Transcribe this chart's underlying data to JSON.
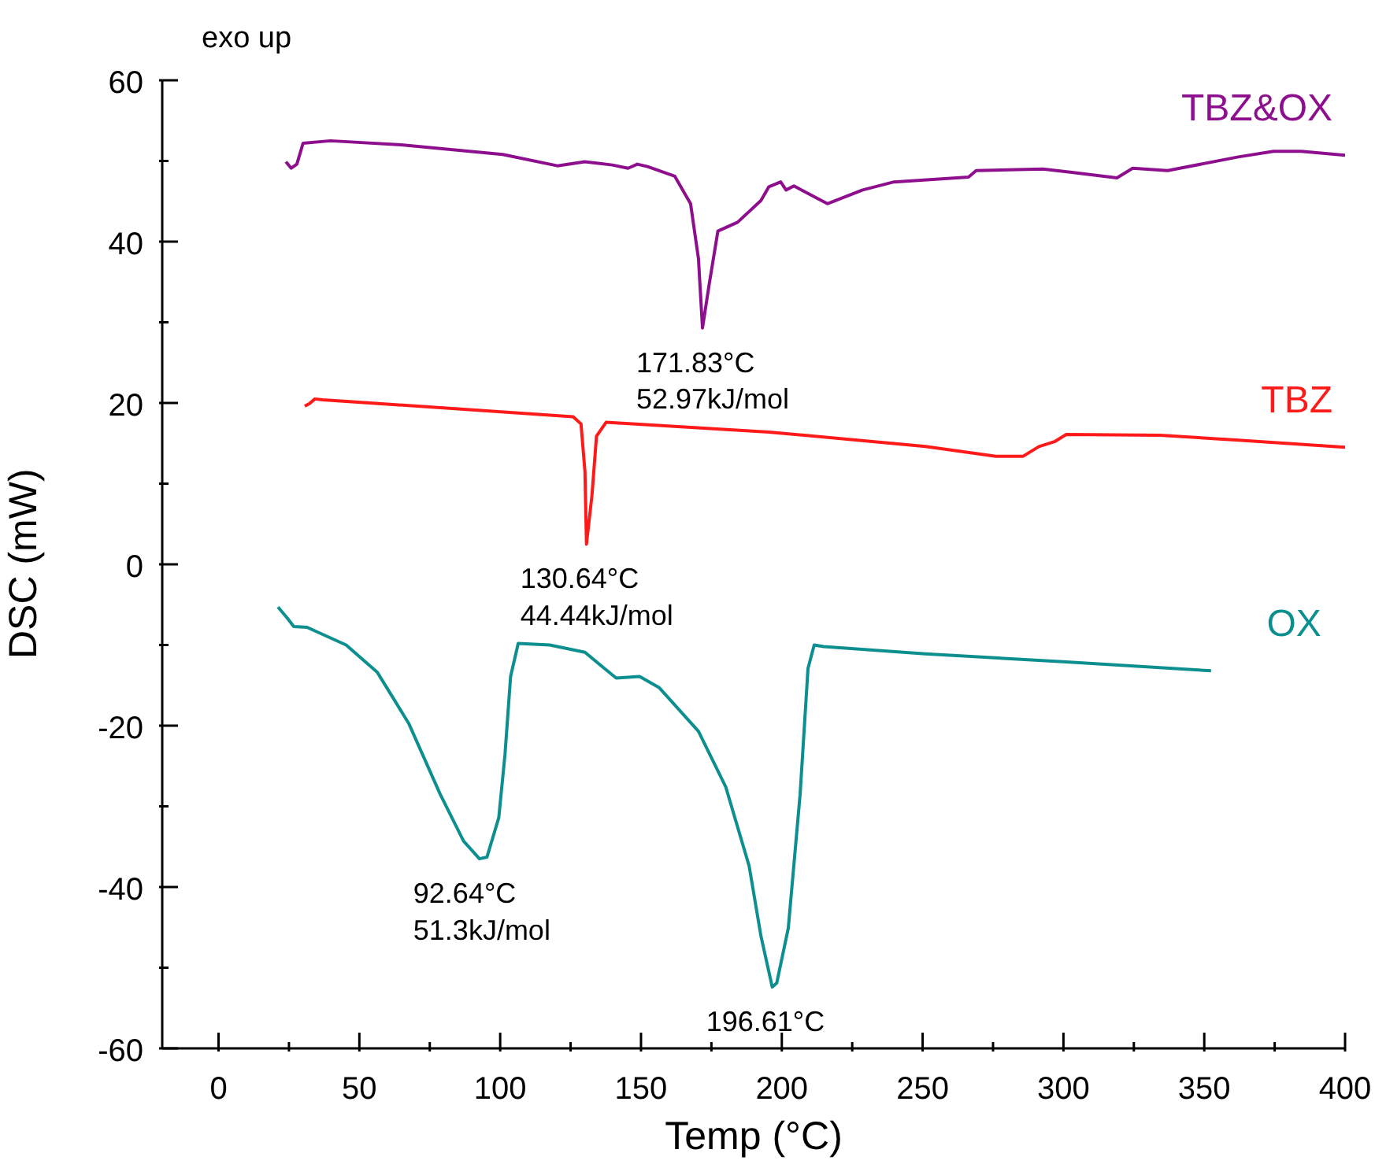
{
  "chart_data": {
    "type": "line",
    "xlabel": "Temp (°C)",
    "ylabel": "DSC (mW)",
    "xlim": [
      -20,
      400
    ],
    "xticks": [
      0,
      {
        "value": 25,
        "label": null
      },
      50,
      {
        "value": 75,
        "label": null
      },
      100,
      {
        "value": 125,
        "label": null
      },
      150,
      {
        "value": 175,
        "label": null
      },
      200,
      {
        "value": 225,
        "label": null
      },
      250,
      {
        "value": 275,
        "label": null
      },
      300,
      {
        "value": 325,
        "label": null
      },
      350,
      {
        "value": 375,
        "label": null
      },
      400
    ],
    "ylim": [
      -60,
      60
    ],
    "yticks": [
      -60,
      {
        "value": -50,
        "label": null
      },
      -40,
      {
        "value": -30,
        "label": null
      },
      -20,
      {
        "value": -10,
        "label": null
      },
      0,
      {
        "value": 10,
        "label": null
      },
      20,
      {
        "value": 30,
        "label": null
      },
      40,
      {
        "value": 50,
        "label": null
      },
      60
    ],
    "series": [
      {
        "name": "TBZ&OX",
        "color": "#8e0f8e",
        "x": [
          23.9,
          25.8,
          27.8,
          30,
          39.7,
          64.8,
          100.9,
          120.3,
          130,
          139.8,
          145.4,
          148.7,
          152.3,
          162,
          167.6,
          170.4,
          171.83,
          174.3,
          177.3,
          184.3,
          192.6,
          195.4,
          199.6,
          201.5,
          204.3,
          216.2,
          228.7,
          239.8,
          266.3,
          269,
          292.7,
          302.4,
          319,
          324.6,
          337,
          362.1,
          374.6,
          384.4,
          400
        ],
        "values": [
          49.9,
          49.1,
          49.6,
          52.2,
          52.5,
          52.0,
          50.8,
          49.4,
          49.9,
          49.5,
          49.1,
          49.6,
          49.3,
          48.1,
          44.7,
          37.9,
          29.3,
          34.9,
          41.3,
          42.4,
          45.1,
          46.8,
          47.4,
          46.4,
          46.9,
          44.7,
          46.4,
          47.4,
          48.0,
          48.8,
          49.0,
          48.6,
          47.9,
          49.1,
          48.8,
          50.5,
          51.2,
          51.2,
          50.7
        ]
      },
      {
        "name": "TBZ",
        "color": "#ff1a1a",
        "x": [
          30.6,
          32.2,
          34.2,
          37,
          125.9,
          128.7,
          130.1,
          130.64,
          132.6,
          134.2,
          137.6,
          195.4,
          251,
          276,
          285.7,
          291.3,
          296.8,
          301,
          334.3,
          362.1,
          400
        ],
        "values": [
          19.6,
          19.9,
          20.5,
          20.4,
          18.3,
          17.4,
          11.5,
          2.5,
          8.6,
          15.9,
          17.6,
          16.4,
          14.6,
          13.4,
          13.4,
          14.6,
          15.2,
          16.1,
          16.0,
          15.4,
          14.5
        ]
      },
      {
        "name": "OX",
        "color": "#0e8f8f",
        "x": [
          21.1,
          24.5,
          26.7,
          31.4,
          45.3,
          56.4,
          67.5,
          78.7,
          87,
          92.64,
          95.3,
          99.5,
          101.7,
          103.7,
          106.4,
          117.6,
          130.1,
          137,
          141.2,
          149.5,
          156.5,
          170.4,
          180.1,
          188.4,
          192.6,
          196.61,
          198.2,
          202.3,
          206.5,
          209.3,
          211.5,
          214.8,
          251,
          301,
          352.4
        ],
        "values": [
          -5.3,
          -6.7,
          -7.7,
          -7.8,
          -10.0,
          -13.4,
          -19.7,
          -28.5,
          -34.3,
          -36.5,
          -36.3,
          -31.4,
          -23.6,
          -13.9,
          -9.8,
          -10.0,
          -10.9,
          -12.9,
          -14.1,
          -13.9,
          -15.3,
          -20.7,
          -27.6,
          -37.4,
          -46.1,
          -52.4,
          -51.9,
          -45.1,
          -28.5,
          -12.9,
          -10.0,
          -10.2,
          -11.1,
          -12.1,
          -13.2
        ]
      }
    ],
    "annotations": [
      "exo up",
      {
        "text": "171.83°C\n52.97kJ/mol",
        "x": 171.83,
        "y": 29.3
      },
      {
        "text": "130.64°C\n44.44kJ/mol",
        "x": 130.64,
        "y": 2.5
      },
      {
        "text": "92.64°C\n51.3kJ/mol",
        "x": 92.64,
        "y": -36.5
      },
      {
        "text": "196.61°C",
        "x": 196.61,
        "y": -52.4
      }
    ]
  }
}
